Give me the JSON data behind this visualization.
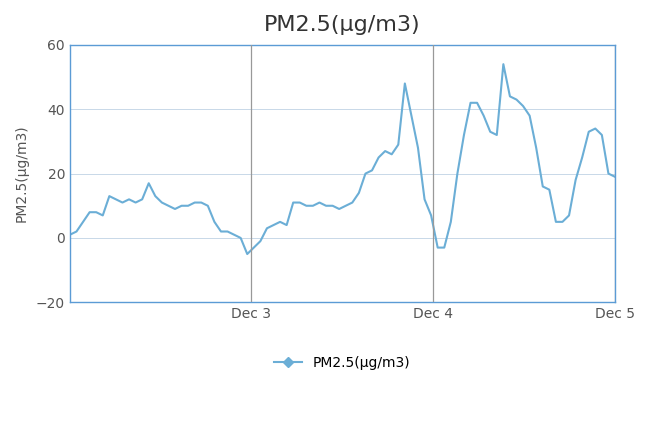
{
  "title": "PM2.5(μg/m3)",
  "ylabel": "PM2.5(μg/m3)",
  "legend_label": "PM2.5(μg/m3)",
  "ylim": [
    -20,
    60
  ],
  "yticks": [
    -20,
    0,
    20,
    40,
    60
  ],
  "line_color": "#6BAED6",
  "background_color": "#ffffff",
  "border_color": "#5B9BD5",
  "grid_color": "#C8D8E8",
  "vline_color": "#999999",
  "title_fontsize": 16,
  "label_fontsize": 10,
  "tick_fontsize": 10,
  "x_tick_labels": [
    "Dec 3",
    "Dec 4",
    "Dec 5"
  ],
  "x_tick_positions": [
    0.333,
    0.667,
    1.0
  ],
  "values": [
    1,
    2,
    5,
    8,
    8,
    7,
    13,
    12,
    11,
    12,
    11,
    12,
    17,
    13,
    11,
    10,
    9,
    10,
    10,
    11,
    11,
    10,
    5,
    2,
    2,
    1,
    0,
    -5,
    -3,
    -1,
    3,
    4,
    5,
    4,
    11,
    11,
    10,
    10,
    11,
    10,
    10,
    9,
    10,
    11,
    14,
    20,
    21,
    25,
    27,
    26,
    29,
    48,
    38,
    28,
    12,
    7,
    -3,
    -3,
    5,
    20,
    32,
    42,
    42,
    38,
    33,
    32,
    54,
    44,
    43,
    41,
    38,
    28,
    16,
    15,
    5,
    5,
    7,
    18,
    25,
    33,
    34,
    32,
    20,
    19
  ]
}
